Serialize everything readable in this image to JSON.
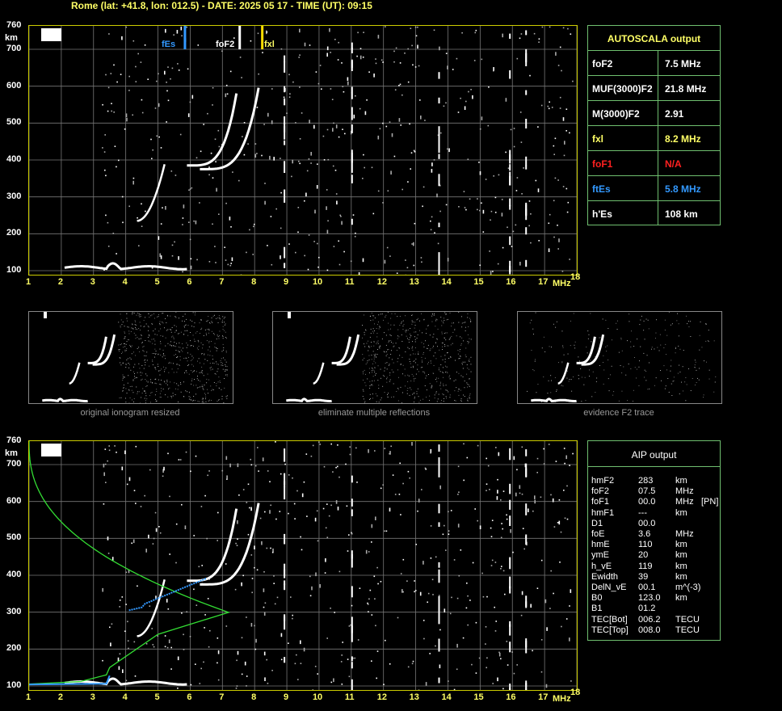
{
  "header": {
    "title": "Rome (lat: +41.8, lon: 012.5) - DATE: 2025 05 17 - TIME (UT): 09:15"
  },
  "axes": {
    "y_ticks": [
      "760",
      "700",
      "600",
      "500",
      "400",
      "300",
      "200",
      "100"
    ],
    "y_unit": "km",
    "x_ticks": [
      "1",
      "2",
      "3",
      "4",
      "5",
      "6",
      "7",
      "8",
      "9",
      "10",
      "11",
      "12",
      "13",
      "14",
      "15",
      "16",
      "17",
      "18"
    ],
    "x_unit": "MHz"
  },
  "markers": {
    "es": "fEs",
    "fof2": "foF2",
    "fxl": "fxl"
  },
  "autoscala": {
    "title": "AUTOSCALA output",
    "rows": [
      {
        "label": "foF2",
        "value": "7.5 MHz",
        "color": "#ffffff"
      },
      {
        "label": "MUF(3000)F2",
        "value": "21.8 MHz",
        "color": "#ffffff"
      },
      {
        "label": "M(3000)F2",
        "value": "2.91",
        "color": "#ffffff"
      },
      {
        "label": "fxl",
        "value": "8.2 MHz",
        "color": "#ffff66"
      },
      {
        "label": "foF1",
        "value": "N/A",
        "color": "#ff2020"
      },
      {
        "label": "ftEs",
        "value": "5.8 MHz",
        "color": "#3399ff"
      },
      {
        "label": "h'Es",
        "value": "108    km",
        "color": "#ffffff"
      }
    ]
  },
  "thumbnails": [
    {
      "caption": "original ionogram resized"
    },
    {
      "caption": "eliminate multiple reflections"
    },
    {
      "caption": "evidence F2 trace"
    }
  ],
  "aip": {
    "title": "AIP output",
    "rows": [
      {
        "k": "hmF2",
        "v": "283",
        "u": "km",
        "x": ""
      },
      {
        "k": "foF2",
        "v": "07.5",
        "u": "MHz",
        "x": ""
      },
      {
        "k": "foF1",
        "v": "00.0",
        "u": "MHz",
        "x": "[PN]"
      },
      {
        "k": "hmF1",
        "v": "---",
        "u": "km",
        "x": ""
      },
      {
        "k": "D1",
        "v": "00.0",
        "u": "",
        "x": ""
      },
      {
        "k": "foE",
        "v": "3.6",
        "u": "MHz",
        "x": ""
      },
      {
        "k": "hmE",
        "v": "110",
        "u": "km",
        "x": ""
      },
      {
        "k": "ymE",
        "v": "20",
        "u": "km",
        "x": ""
      },
      {
        "k": "h_vE",
        "v": "119",
        "u": "km",
        "x": ""
      },
      {
        "k": "Ewidth",
        "v": "39",
        "u": "km",
        "x": ""
      },
      {
        "k": "DelN_vE",
        "v": "00.1",
        "u": "m^(-3)",
        "x": ""
      },
      {
        "k": "B0",
        "v": "123.0",
        "u": "km",
        "x": ""
      },
      {
        "k": "B1",
        "v": "01.2",
        "u": "",
        "x": ""
      },
      {
        "k": "TEC[Bot]",
        "v": "006.2",
        "u": "TECU",
        "x": ""
      },
      {
        "k": "TEC[Top]",
        "v": "008.0",
        "u": "TECU",
        "x": ""
      }
    ]
  },
  "colors": {
    "frame": "#cccc00",
    "grid": "#777777",
    "profile": "#33dd33",
    "es": "#3399ff",
    "fxl": "#ffdd00"
  }
}
